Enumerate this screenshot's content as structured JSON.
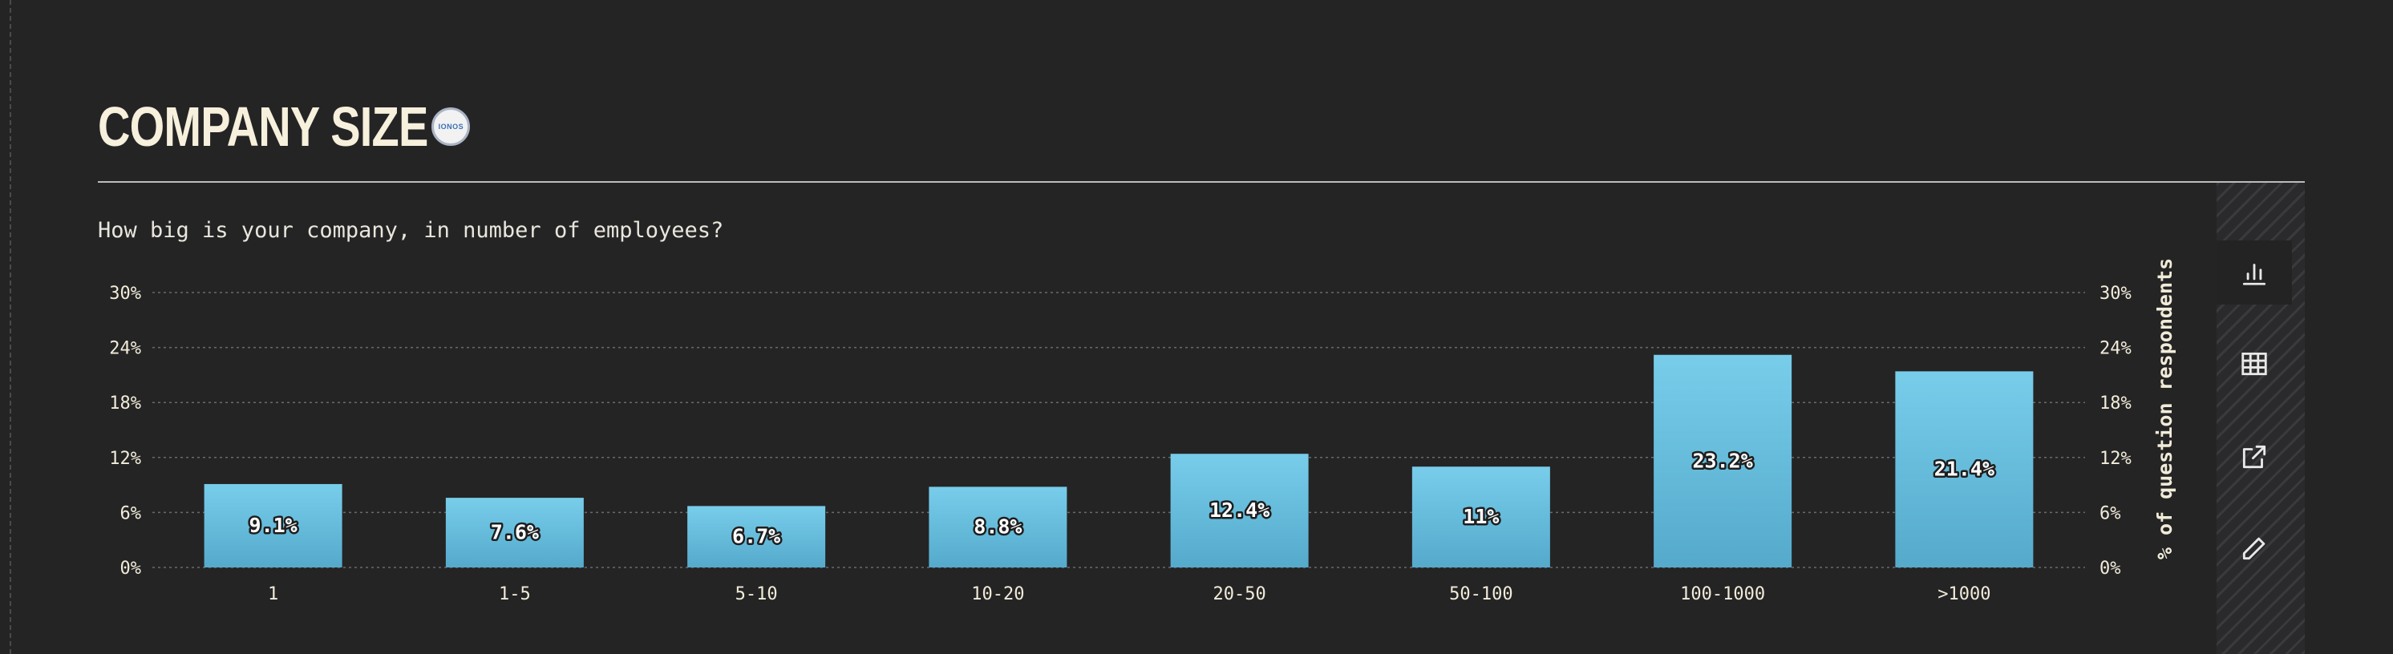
{
  "header": {
    "title": "COMPANY SIZE",
    "badge_text": "IONOS"
  },
  "question": "How big is your company, in number of employees?",
  "sidebar": {
    "buttons": [
      {
        "icon": "bar-chart-icon",
        "active": true
      },
      {
        "icon": "table-icon",
        "active": false
      },
      {
        "icon": "external-link-icon",
        "active": false
      },
      {
        "icon": "pencil-icon",
        "active": false
      }
    ]
  },
  "colors": {
    "background": "#252425",
    "bar_top": "#77cdea",
    "bar_bottom": "#55aacc",
    "grid": "#6a6a6c",
    "text": "#f1ecd9"
  },
  "chart_data": {
    "type": "bar",
    "categories": [
      "1",
      "1-5",
      "5-10",
      "10-20",
      "20-50",
      "50-100",
      "100-1000",
      ">1000"
    ],
    "values": [
      9.1,
      7.6,
      6.7,
      8.8,
      12.4,
      11,
      23.2,
      21.4
    ],
    "value_labels": [
      "9.1%",
      "7.6%",
      "6.7%",
      "8.8%",
      "12.4%",
      "11%",
      "23.2%",
      "21.4%"
    ],
    "ylim": [
      0,
      30
    ],
    "yticks": [
      0,
      6,
      12,
      18,
      24,
      30
    ],
    "ytick_labels": [
      "0%",
      "6%",
      "12%",
      "18%",
      "24%",
      "30%"
    ],
    "ylabel": "% of question respondents",
    "xlabel": "",
    "grid": true,
    "dual_y_axis": true
  }
}
